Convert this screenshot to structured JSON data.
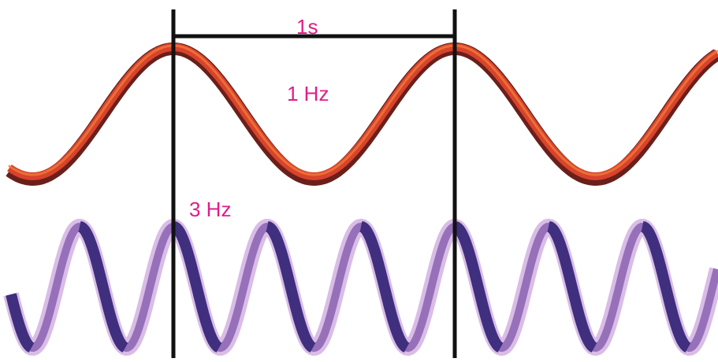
{
  "labels": {
    "period": "1s",
    "wave_low": "1 Hz",
    "wave_high": "3 Hz"
  },
  "waves": {
    "low": {
      "frequency_hz": 1,
      "color_light": "#f07a3a",
      "color_mid": "#d8432c",
      "color_dark": "#6a1f1a"
    },
    "high": {
      "frequency_hz": 3,
      "color_light": "#d9bde6",
      "color_mid": "#8a63b0",
      "color_dark": "#3f2f7e"
    }
  },
  "colors": {
    "label": "#e11d8a",
    "marker": "#111111"
  }
}
